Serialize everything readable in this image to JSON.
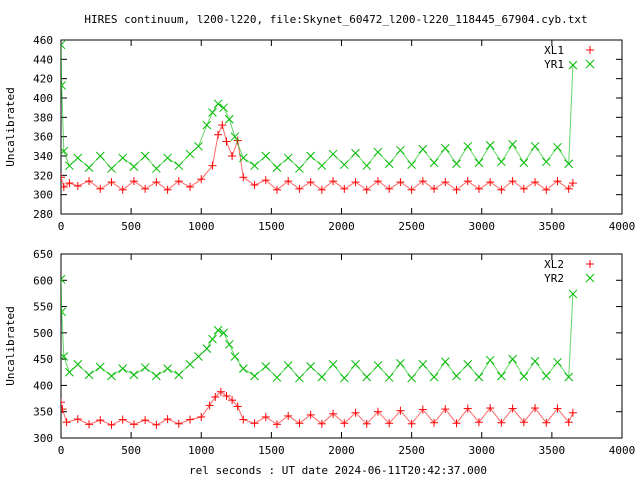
{
  "title": "HIRES continuum, l200-l220, file:Skynet_60472_l200-l220_118445_67904.cyb.txt",
  "xlabel": "rel seconds : UT date 2024-06-11T20:42:37.000",
  "chart_data": [
    {
      "type": "scatter",
      "ylabel": "Uncalibrated",
      "xlim": [
        0,
        4000
      ],
      "ylim": [
        280,
        460
      ],
      "xticks": [
        0,
        500,
        1000,
        1500,
        2000,
        2500,
        3000,
        3500,
        4000
      ],
      "yticks": [
        280,
        300,
        320,
        340,
        360,
        380,
        400,
        420,
        440,
        460
      ],
      "legend_position": "top-right",
      "series": [
        {
          "name": "XL1",
          "marker": "+",
          "color": "#ff0000",
          "points": [
            [
              0,
              318
            ],
            [
              20,
              308
            ],
            [
              60,
              312
            ],
            [
              120,
              309
            ],
            [
              200,
              314
            ],
            [
              280,
              306
            ],
            [
              360,
              313
            ],
            [
              440,
              305
            ],
            [
              520,
              314
            ],
            [
              600,
              306
            ],
            [
              680,
              313
            ],
            [
              760,
              305
            ],
            [
              840,
              314
            ],
            [
              920,
              308
            ],
            [
              1000,
              316
            ],
            [
              1080,
              330
            ],
            [
              1120,
              362
            ],
            [
              1150,
              372
            ],
            [
              1180,
              355
            ],
            [
              1220,
              340
            ],
            [
              1260,
              356
            ],
            [
              1300,
              318
            ],
            [
              1380,
              310
            ],
            [
              1460,
              315
            ],
            [
              1540,
              305
            ],
            [
              1620,
              314
            ],
            [
              1700,
              306
            ],
            [
              1780,
              313
            ],
            [
              1860,
              305
            ],
            [
              1940,
              314
            ],
            [
              2020,
              306
            ],
            [
              2100,
              313
            ],
            [
              2180,
              305
            ],
            [
              2260,
              314
            ],
            [
              2340,
              306
            ],
            [
              2420,
              313
            ],
            [
              2500,
              305
            ],
            [
              2580,
              314
            ],
            [
              2660,
              306
            ],
            [
              2740,
              313
            ],
            [
              2820,
              305
            ],
            [
              2900,
              314
            ],
            [
              2980,
              306
            ],
            [
              3060,
              313
            ],
            [
              3140,
              305
            ],
            [
              3220,
              314
            ],
            [
              3300,
              306
            ],
            [
              3380,
              313
            ],
            [
              3460,
              305
            ],
            [
              3540,
              314
            ],
            [
              3620,
              306
            ],
            [
              3650,
              312
            ]
          ]
        },
        {
          "name": "YR1",
          "marker": "x",
          "color": "#00bb00",
          "points": [
            [
              0,
              455
            ],
            [
              5,
              413
            ],
            [
              20,
              345
            ],
            [
              60,
              330
            ],
            [
              120,
              338
            ],
            [
              200,
              328
            ],
            [
              280,
              340
            ],
            [
              360,
              327
            ],
            [
              440,
              338
            ],
            [
              520,
              329
            ],
            [
              600,
              340
            ],
            [
              680,
              327
            ],
            [
              760,
              338
            ],
            [
              840,
              330
            ],
            [
              920,
              342
            ],
            [
              980,
              350
            ],
            [
              1040,
              372
            ],
            [
              1080,
              385
            ],
            [
              1120,
              394
            ],
            [
              1160,
              390
            ],
            [
              1200,
              378
            ],
            [
              1240,
              360
            ],
            [
              1300,
              338
            ],
            [
              1380,
              330
            ],
            [
              1460,
              340
            ],
            [
              1540,
              328
            ],
            [
              1620,
              338
            ],
            [
              1700,
              327
            ],
            [
              1780,
              340
            ],
            [
              1860,
              330
            ],
            [
              1940,
              342
            ],
            [
              2020,
              331
            ],
            [
              2100,
              343
            ],
            [
              2180,
              330
            ],
            [
              2260,
              344
            ],
            [
              2340,
              332
            ],
            [
              2420,
              346
            ],
            [
              2500,
              331
            ],
            [
              2580,
              347
            ],
            [
              2660,
              333
            ],
            [
              2740,
              348
            ],
            [
              2820,
              332
            ],
            [
              2900,
              350
            ],
            [
              2980,
              333
            ],
            [
              3060,
              351
            ],
            [
              3140,
              334
            ],
            [
              3220,
              352
            ],
            [
              3300,
              333
            ],
            [
              3380,
              350
            ],
            [
              3460,
              334
            ],
            [
              3540,
              349
            ],
            [
              3620,
              332
            ],
            [
              3650,
              434
            ]
          ]
        }
      ]
    },
    {
      "type": "scatter",
      "ylabel": "Uncalibrated",
      "xlim": [
        0,
        4000
      ],
      "ylim": [
        300,
        650
      ],
      "xticks": [
        0,
        500,
        1000,
        1500,
        2000,
        2500,
        3000,
        3500,
        4000
      ],
      "yticks": [
        300,
        350,
        400,
        450,
        500,
        550,
        600,
        650
      ],
      "legend_position": "top-right",
      "series": [
        {
          "name": "XL2",
          "marker": "+",
          "color": "#ff0000",
          "points": [
            [
              0,
              368
            ],
            [
              10,
              355
            ],
            [
              40,
              330
            ],
            [
              120,
              336
            ],
            [
              200,
              326
            ],
            [
              280,
              334
            ],
            [
              360,
              325
            ],
            [
              440,
              335
            ],
            [
              520,
              326
            ],
            [
              600,
              334
            ],
            [
              680,
              325
            ],
            [
              760,
              336
            ],
            [
              840,
              327
            ],
            [
              920,
              335
            ],
            [
              1000,
              340
            ],
            [
              1060,
              362
            ],
            [
              1100,
              378
            ],
            [
              1140,
              388
            ],
            [
              1180,
              380
            ],
            [
              1220,
              372
            ],
            [
              1260,
              360
            ],
            [
              1300,
              335
            ],
            [
              1380,
              328
            ],
            [
              1460,
              340
            ],
            [
              1540,
              326
            ],
            [
              1620,
              342
            ],
            [
              1700,
              328
            ],
            [
              1780,
              344
            ],
            [
              1860,
              327
            ],
            [
              1940,
              346
            ],
            [
              2020,
              328
            ],
            [
              2100,
              348
            ],
            [
              2180,
              327
            ],
            [
              2260,
              350
            ],
            [
              2340,
              328
            ],
            [
              2420,
              352
            ],
            [
              2500,
              327
            ],
            [
              2580,
              354
            ],
            [
              2660,
              329
            ],
            [
              2740,
              355
            ],
            [
              2820,
              328
            ],
            [
              2900,
              356
            ],
            [
              2980,
              330
            ],
            [
              3060,
              357
            ],
            [
              3140,
              329
            ],
            [
              3220,
              356
            ],
            [
              3300,
              330
            ],
            [
              3380,
              357
            ],
            [
              3460,
              329
            ],
            [
              3540,
              356
            ],
            [
              3620,
              330
            ],
            [
              3650,
              348
            ]
          ]
        },
        {
          "name": "YR2",
          "marker": "x",
          "color": "#00bb00",
          "points": [
            [
              0,
              602
            ],
            [
              5,
              540
            ],
            [
              20,
              455
            ],
            [
              60,
              425
            ],
            [
              120,
              440
            ],
            [
              200,
              420
            ],
            [
              280,
              435
            ],
            [
              360,
              418
            ],
            [
              440,
              432
            ],
            [
              520,
              420
            ],
            [
              600,
              434
            ],
            [
              680,
              418
            ],
            [
              760,
              432
            ],
            [
              840,
              420
            ],
            [
              920,
              440
            ],
            [
              980,
              455
            ],
            [
              1040,
              470
            ],
            [
              1080,
              488
            ],
            [
              1120,
              505
            ],
            [
              1160,
              500
            ],
            [
              1200,
              478
            ],
            [
              1240,
              455
            ],
            [
              1300,
              432
            ],
            [
              1380,
              418
            ],
            [
              1460,
              436
            ],
            [
              1540,
              415
            ],
            [
              1620,
              438
            ],
            [
              1700,
              414
            ],
            [
              1780,
              436
            ],
            [
              1860,
              416
            ],
            [
              1940,
              440
            ],
            [
              2020,
              414
            ],
            [
              2100,
              440
            ],
            [
              2180,
              416
            ],
            [
              2260,
              438
            ],
            [
              2340,
              415
            ],
            [
              2420,
              442
            ],
            [
              2500,
              414
            ],
            [
              2580,
              440
            ],
            [
              2660,
              416
            ],
            [
              2740,
              445
            ],
            [
              2820,
              418
            ],
            [
              2900,
              440
            ],
            [
              2980,
              416
            ],
            [
              3060,
              448
            ],
            [
              3140,
              418
            ],
            [
              3220,
              450
            ],
            [
              3300,
              417
            ],
            [
              3380,
              446
            ],
            [
              3460,
              418
            ],
            [
              3540,
              444
            ],
            [
              3620,
              416
            ],
            [
              3650,
              574
            ]
          ]
        }
      ]
    }
  ]
}
